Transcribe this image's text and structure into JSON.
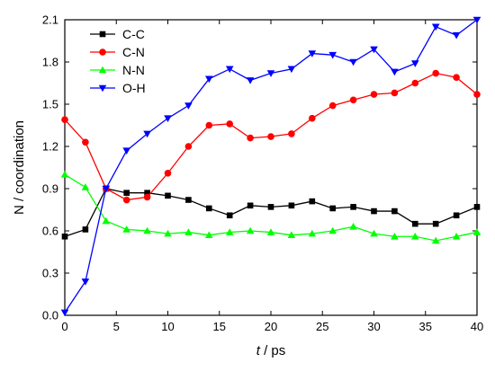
{
  "chart_data": {
    "type": "line",
    "xlabel_italic": "t",
    "xlabel_rest": " / ps",
    "ylabel": "N / coordination",
    "xlim": [
      0,
      40
    ],
    "ylim": [
      0,
      2.1
    ],
    "xticks": [
      0,
      5,
      10,
      15,
      20,
      25,
      30,
      35,
      40
    ],
    "yticks": [
      "0.0",
      "0.3",
      "0.6",
      "0.9",
      "1.2",
      "1.5",
      "1.8",
      "2.1"
    ],
    "grid": false,
    "legend_position": "top-left",
    "x": [
      0,
      2,
      4,
      6,
      8,
      10,
      12,
      14,
      16,
      18,
      20,
      22,
      24,
      26,
      28,
      30,
      32,
      34,
      36,
      38,
      40
    ],
    "series": [
      {
        "name": "C-C",
        "color": "#000000",
        "marker": "square",
        "values": [
          0.56,
          0.61,
          0.9,
          0.87,
          0.87,
          0.85,
          0.82,
          0.76,
          0.71,
          0.78,
          0.77,
          0.78,
          0.81,
          0.76,
          0.77,
          0.74,
          0.74,
          0.65,
          0.65,
          0.71,
          0.77
        ]
      },
      {
        "name": "C-N",
        "color": "#ff0000",
        "marker": "circle",
        "values": [
          1.39,
          1.23,
          0.9,
          0.82,
          0.84,
          1.01,
          1.2,
          1.35,
          1.36,
          1.26,
          1.27,
          1.29,
          1.4,
          1.49,
          1.53,
          1.57,
          1.58,
          1.65,
          1.72,
          1.69,
          1.57
        ]
      },
      {
        "name": "N-N",
        "color": "#00ff00",
        "marker": "triangle-up",
        "values": [
          1.0,
          0.91,
          0.67,
          0.61,
          0.6,
          0.58,
          0.59,
          0.57,
          0.59,
          0.6,
          0.59,
          0.57,
          0.58,
          0.6,
          0.63,
          0.58,
          0.56,
          0.56,
          0.53,
          0.56,
          0.59
        ]
      },
      {
        "name": "O-H",
        "color": "#0000ff",
        "marker": "triangle-down",
        "values": [
          0.02,
          0.24,
          0.9,
          1.17,
          1.29,
          1.4,
          1.49,
          1.68,
          1.75,
          1.67,
          1.72,
          1.75,
          1.86,
          1.85,
          1.8,
          1.89,
          1.73,
          1.79,
          2.05,
          1.99,
          2.1
        ]
      }
    ]
  }
}
